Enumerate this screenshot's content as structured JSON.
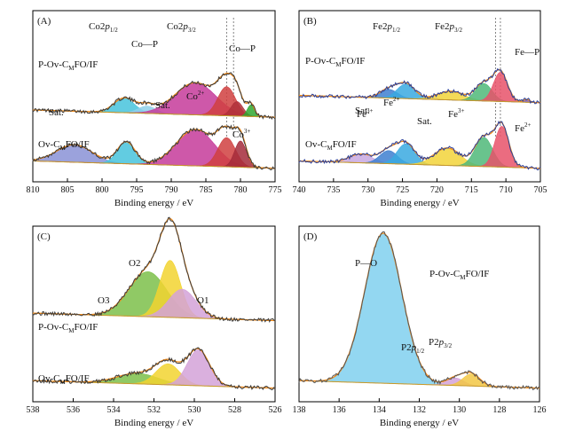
{
  "chart_data": [
    {
      "type": "area",
      "panel_label": "(A)",
      "xlabel": "Binding energy / eV",
      "ylabel": "",
      "xlim": [
        810,
        775
      ],
      "x_reversed": true,
      "xticks": [
        810,
        805,
        800,
        795,
        790,
        785,
        780,
        775
      ],
      "reference_lines": [
        782,
        781
      ],
      "series": [
        {
          "name": "P-Ov-CMFO/IF",
          "baseline_level": 0.35,
          "peaks": [
            {
              "label": "Co2p1/2",
              "center": 796.8,
              "fwhm": 3.5,
              "height": 0.1,
              "color": "#46c3dc"
            },
            {
              "label": "Co—P",
              "center": 793.5,
              "fwhm": 3.0,
              "height": 0.05,
              "color": "#8fd0ea"
            },
            {
              "label": "Sat.",
              "center": 786.5,
              "fwhm": 7.0,
              "height": 0.22,
              "color": "#c63b9a"
            },
            {
              "label": "Co2p3/2",
              "center": 782.0,
              "fwhm": 3.0,
              "height": 0.2,
              "color": "#d04040"
            },
            {
              "label": "Co2p3/2",
              "center": 780.5,
              "fwhm": 2.0,
              "height": 0.1,
              "color": "#b0303a"
            },
            {
              "label": "Co—P",
              "center": 778.5,
              "fwhm": 1.2,
              "height": 0.08,
              "color": "#2fa830"
            }
          ]
        },
        {
          "name": "Ov-CMFO/IF",
          "baseline_level": 0.0,
          "peaks": [
            {
              "label": "Sat.",
              "center": 804.0,
              "fwhm": 6.0,
              "height": 0.12,
              "color": "#8a92d6"
            },
            {
              "label": "Co2p1/2",
              "center": 796.5,
              "fwhm": 3.0,
              "height": 0.15,
              "color": "#46c3dc"
            },
            {
              "label": "Sat.",
              "center": 786.5,
              "fwhm": 6.5,
              "height": 0.25,
              "color": "#c63b9a"
            },
            {
              "label": "Co2+",
              "center": 782.0,
              "fwhm": 3.0,
              "height": 0.2,
              "color": "#d04040"
            },
            {
              "label": "Co3+",
              "center": 780.0,
              "fwhm": 2.0,
              "height": 0.18,
              "color": "#a52a3a"
            }
          ]
        }
      ],
      "annotations": [
        "Co2p1/2",
        "Co—P",
        "Co2p3/2",
        "Co—P",
        "Sat.",
        "Sat.",
        "Co2+",
        "Co3+"
      ],
      "sample_labels": [
        "P-Ov-CMFO/IF",
        "Ov-CMFO/IF"
      ]
    },
    {
      "type": "area",
      "panel_label": "(B)",
      "xlabel": "Binding energy / eV",
      "ylabel": "",
      "xlim": [
        740,
        705
      ],
      "x_reversed": true,
      "xticks": [
        740,
        735,
        730,
        725,
        720,
        715,
        710,
        705
      ],
      "reference_lines": [
        711.5,
        710.8
      ],
      "series": [
        {
          "name": "P-Ov-CMFO/IF",
          "baseline_level": 0.45,
          "peaks": [
            {
              "label": "Fe2p1/2",
              "center": 727.0,
              "fwhm": 3.0,
              "height": 0.06,
              "color": "#3e7fd0"
            },
            {
              "label": "Fe2p1/2",
              "center": 724.5,
              "fwhm": 3.0,
              "height": 0.1,
              "color": "#3aa9e0"
            },
            {
              "label": "Sat.",
              "center": 718.0,
              "fwhm": 4.5,
              "height": 0.06,
              "color": "#f2d33a"
            },
            {
              "label": "Fe2p3/2",
              "center": 713.2,
              "fwhm": 2.8,
              "height": 0.12,
              "color": "#4fb879"
            },
            {
              "label": "Fe2p3/2",
              "center": 710.8,
              "fwhm": 2.4,
              "height": 0.2,
              "color": "#e8526a"
            },
            {
              "label": "Fe—P",
              "center": 707.0,
              "fwhm": 1.0,
              "height": 0.02,
              "color": "#7b5ab8"
            }
          ]
        },
        {
          "name": "Ov-CMFO/IF",
          "baseline_level": 0.0,
          "peaks": [
            {
              "label": "Sat.",
              "center": 731.0,
              "fwhm": 4.0,
              "height": 0.06,
              "color": "#c8a8e0"
            },
            {
              "label": "Fe3+",
              "center": 727.0,
              "fwhm": 3.0,
              "height": 0.09,
              "color": "#3e7fd0"
            },
            {
              "label": "Fe2+",
              "center": 724.5,
              "fwhm": 3.0,
              "height": 0.14,
              "color": "#3aa9e0"
            },
            {
              "label": "Sat.",
              "center": 718.5,
              "fwhm": 4.5,
              "height": 0.12,
              "color": "#f2d33a"
            },
            {
              "label": "Fe3+",
              "center": 713.2,
              "fwhm": 3.0,
              "height": 0.2,
              "color": "#4fb879"
            },
            {
              "label": "Fe2+",
              "center": 710.6,
              "fwhm": 2.4,
              "height": 0.28,
              "color": "#e8526a"
            }
          ]
        }
      ],
      "annotations": [
        "Fe2p1/2",
        "Fe2p3/2",
        "Fe—P",
        "Sat.",
        "Fe3+",
        "Fe2+",
        "Sat.",
        "Fe3+",
        "Fe2+"
      ],
      "sample_labels": [
        "P-Ov-CMFO/IF",
        "Ov-CMFO/IF"
      ]
    },
    {
      "type": "area",
      "panel_label": "(C)",
      "xlabel": "Binding energy / eV",
      "ylabel": "",
      "xlim": [
        538,
        526
      ],
      "x_reversed": true,
      "xticks": [
        538,
        536,
        534,
        532,
        530,
        528,
        526
      ],
      "series": [
        {
          "name": "P-Ov-CMFO/IF",
          "baseline_level": 0.45,
          "peaks": [
            {
              "label": "O3",
              "center": 532.3,
              "fwhm": 2.2,
              "height": 0.3,
              "color": "#7cc04a"
            },
            {
              "label": "O2",
              "center": 531.2,
              "fwhm": 1.2,
              "height": 0.38,
              "color": "#f2d330"
            },
            {
              "label": "O1",
              "center": 530.6,
              "fwhm": 1.6,
              "height": 0.19,
              "color": "#d4a2d8"
            }
          ]
        },
        {
          "name": "Ov-CMFO/IF",
          "baseline_level": 0.0,
          "peaks": [
            {
              "label": "O3",
              "center": 532.8,
              "fwhm": 2.4,
              "height": 0.07,
              "color": "#7cc04a"
            },
            {
              "label": "O2",
              "center": 531.3,
              "fwhm": 1.4,
              "height": 0.14,
              "color": "#f2d330"
            },
            {
              "label": "O1",
              "center": 529.8,
              "fwhm": 1.3,
              "height": 0.24,
              "color": "#d4a2d8"
            }
          ]
        }
      ],
      "annotations": [
        "O3",
        "O2",
        "O1"
      ],
      "sample_labels": [
        "P-Ov-CMFO/IF",
        "Ov-CMFO/IF"
      ]
    },
    {
      "type": "area",
      "panel_label": "(D)",
      "xlabel": "Binding energy / eV",
      "ylabel": "",
      "xlim": [
        138,
        126
      ],
      "x_reversed": true,
      "xticks": [
        138,
        136,
        134,
        132,
        130,
        128,
        126
      ],
      "series": [
        {
          "name": "P-Ov-CMFO/IF",
          "baseline_level": 0.0,
          "peaks": [
            {
              "label": "P—O",
              "center": 133.8,
              "fwhm": 2.2,
              "height": 1.0,
              "color": "#80d0ef"
            },
            {
              "label": "P2p1/2",
              "center": 130.2,
              "fwhm": 1.0,
              "height": 0.05,
              "color": "#d4a2d8"
            },
            {
              "label": "P2p3/2",
              "center": 129.4,
              "fwhm": 1.0,
              "height": 0.08,
              "color": "#f2c744"
            }
          ]
        }
      ],
      "annotations": [
        "P—O",
        "P2p1/2",
        "P2p3/2"
      ],
      "sample_labels": [
        "P-Ov-CMFO/IF"
      ]
    }
  ]
}
